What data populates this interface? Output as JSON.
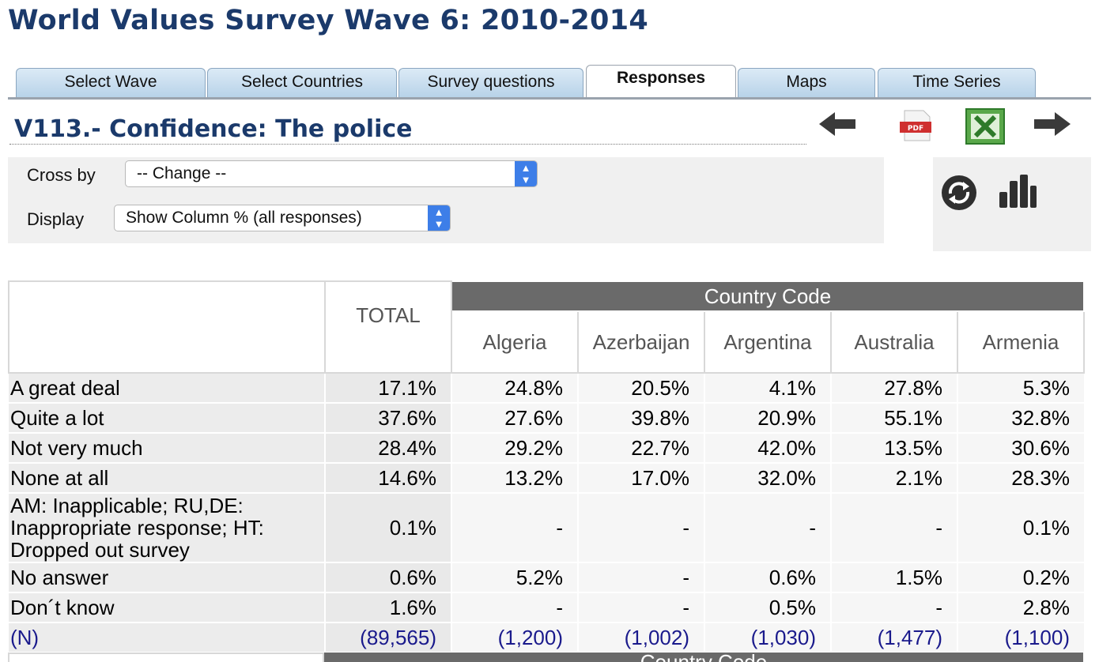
{
  "page": {
    "title": "World Values Survey Wave 6: 2010-2014"
  },
  "tabs": [
    {
      "label": "Select Wave"
    },
    {
      "label": "Select Countries"
    },
    {
      "label": "Survey questions"
    },
    {
      "label": "Responses"
    },
    {
      "label": "Maps"
    },
    {
      "label": "Time Series"
    }
  ],
  "active_tab": "Responses",
  "question": {
    "title": "V113.- Confidence: The police"
  },
  "toolbar": {
    "icons": [
      "back-arrow-icon",
      "pdf-icon",
      "excel-icon",
      "forward-arrow-icon"
    ]
  },
  "controls": {
    "cross_by": {
      "label": "Cross by",
      "value": "-- Change --"
    },
    "display": {
      "label": "Display",
      "value": "Show Column % (all responses)"
    }
  },
  "side_tools": {
    "icons": [
      "refresh-icon",
      "bar-chart-icon"
    ]
  },
  "table": {
    "group_header": "Country Code",
    "total_header": "TOTAL",
    "countries": [
      "Algeria",
      "Azerbaijan",
      "Argentina",
      "Australia",
      "Armenia"
    ],
    "rows": [
      {
        "label": "A great deal",
        "values": [
          "17.1%",
          "24.8%",
          "20.5%",
          "4.1%",
          "27.8%",
          "5.3%"
        ]
      },
      {
        "label": "Quite a lot",
        "values": [
          "37.6%",
          "27.6%",
          "39.8%",
          "20.9%",
          "55.1%",
          "32.8%"
        ]
      },
      {
        "label": "Not very much",
        "values": [
          "28.4%",
          "29.2%",
          "22.7%",
          "42.0%",
          "13.5%",
          "30.6%"
        ]
      },
      {
        "label": "None at all",
        "values": [
          "14.6%",
          "13.2%",
          "17.0%",
          "32.0%",
          "2.1%",
          "28.3%"
        ]
      },
      {
        "label": "AM: Inapplicable; RU,DE: Inappropriate response; HT: Dropped out survey",
        "values": [
          "0.1%",
          "-",
          "-",
          "-",
          "-",
          "0.1%"
        ]
      },
      {
        "label": "No answer",
        "values": [
          "0.6%",
          "5.2%",
          "-",
          "0.6%",
          "1.5%",
          "0.2%"
        ]
      },
      {
        "label": "Don´t know",
        "values": [
          "1.6%",
          "-",
          "-",
          "0.5%",
          "-",
          "2.8%"
        ]
      },
      {
        "label": "(N)",
        "values": [
          "(89,565)",
          "(1,200)",
          "(1,002)",
          "(1,030)",
          "(1,477)",
          "(1,100)"
        ]
      }
    ],
    "footer_group_header": "Country Code"
  },
  "colors": {
    "title": "#1b3a6b",
    "header_bg": "#6a6a6a",
    "n_row": "#1a1a8c",
    "select_arrow": "#3d7ee8"
  }
}
